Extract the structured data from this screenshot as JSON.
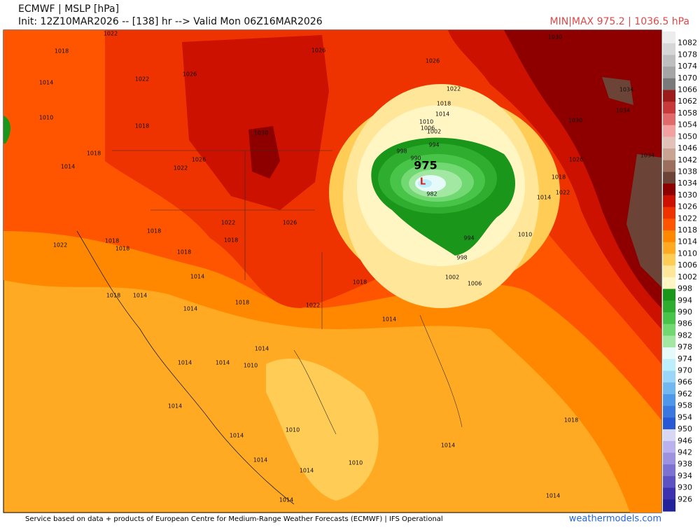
{
  "header": {
    "title": "ECMWF | MSLP [hPa]",
    "init": "Init: 12Z10MAR2026 -- [138] hr --> Valid Mon 06Z16MAR2026",
    "minmax": "MIN|MAX 975.2 | 1036.5 hPa"
  },
  "map": {
    "low_label": "975",
    "low_marker": "L",
    "contour_labels": [
      "1018",
      "1022",
      "1014",
      "1010",
      "1018",
      "1022",
      "1026",
      "1030",
      "1026",
      "1026",
      "1022",
      "1018",
      "1014",
      "1010",
      "1006",
      "1002",
      "998",
      "994",
      "990",
      "982",
      "994",
      "998",
      "1002",
      "1006",
      "1010",
      "1014",
      "1018",
      "1022",
      "1026",
      "1030",
      "1034",
      "1034",
      "1034",
      "1030",
      "1018",
      "1014",
      "1022",
      "1026",
      "1022",
      "1026",
      "1022",
      "1018",
      "1018",
      "1018",
      "1018",
      "1018",
      "1014",
      "1018",
      "1018",
      "1014",
      "1014",
      "1022",
      "1018",
      "1014",
      "1014",
      "1014",
      "1014",
      "1010",
      "1014",
      "1014",
      "1010",
      "1014",
      "1014",
      "1010",
      "1014",
      "1018",
      "1014",
      "1014"
    ]
  },
  "colorbar": {
    "labels": [
      1082,
      1078,
      1074,
      1070,
      1066,
      1062,
      1058,
      1054,
      1050,
      1046,
      1042,
      1038,
      1034,
      1030,
      1026,
      1022,
      1018,
      1014,
      1010,
      1006,
      1002,
      998,
      994,
      990,
      986,
      982,
      978,
      974,
      970,
      966,
      962,
      958,
      954,
      950,
      946,
      942,
      938,
      934,
      930,
      926
    ],
    "colors": [
      "#ececec",
      "#d6d6d6",
      "#bebebe",
      "#a5a5a5",
      "#7a7a7a",
      "#9c1c1c",
      "#c83a3a",
      "#e06a6a",
      "#f2a0a0",
      "#e2c2b8",
      "#c9a493",
      "#9c6e5e",
      "#6b4437",
      "#8e0000",
      "#cc1100",
      "#ee3300",
      "#ff5500",
      "#ff8800",
      "#ffaa22",
      "#ffcc55",
      "#ffe699",
      "#fff6c4",
      "#1a961a",
      "#2ead2e",
      "#48c448",
      "#72d872",
      "#a2e8a2",
      "#e6fafa",
      "#bdeefc",
      "#9ad6f8",
      "#72b8f0",
      "#4f97e8",
      "#3a78e0",
      "#2858d4",
      "#d8d8f4",
      "#bab2ee",
      "#9c92e0",
      "#7c72d2",
      "#5c52c2",
      "#3c32b0",
      "#22229a"
    ]
  },
  "footer": {
    "credit": "Service based on data + products of European Centre for Medium-Range Weather Forecasts (ECMWF) | IFS Operational",
    "site": "weathermodels.com"
  }
}
